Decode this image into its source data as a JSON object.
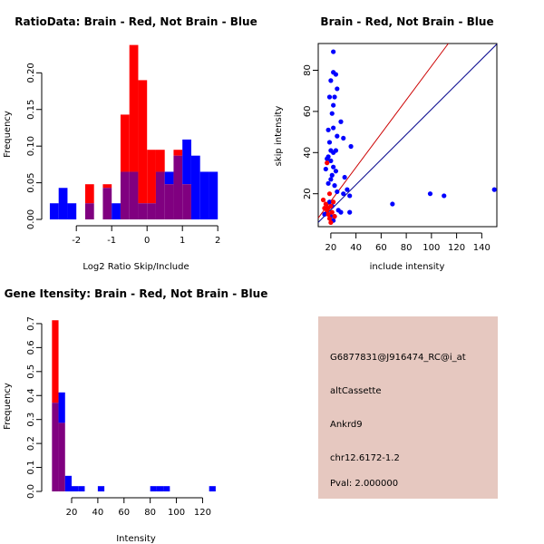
{
  "colors": {
    "red": "#ff0000",
    "blue": "#0000ff",
    "overlap": "#800080",
    "info_bg": "#e6c8c0",
    "pval": "#cc0000",
    "diag_red": "#cc0000",
    "diag_blue": "#00008b"
  },
  "chart_data": [
    {
      "type": "bar",
      "title": "RatioData: Brain - Red, Not Brain - Blue",
      "xlabel": "Log2 Ratio Skip/Include",
      "ylabel": "Frequency",
      "xlim": [
        -2.8,
        2.2
      ],
      "ylim": [
        0,
        0.24
      ],
      "xticks": [
        -2,
        -1,
        0,
        1,
        2
      ],
      "xtick_labels": [
        "-2",
        "-1",
        "0",
        "1",
        "2"
      ],
      "yticks": [
        0.0,
        0.05,
        0.1,
        0.15,
        0.2
      ],
      "ytick_labels": [
        "0.00",
        "0.05",
        "0.10",
        "0.15",
        "0.20"
      ],
      "bin_edges": [
        -2.75,
        -2.5,
        -2.25,
        -2.0,
        -1.75,
        -1.5,
        -1.25,
        -1.0,
        -0.75,
        -0.5,
        -0.25,
        0.0,
        0.25,
        0.5,
        0.75,
        1.0,
        1.25,
        1.5,
        1.75,
        2.0
      ],
      "series": [
        {
          "name": "Brain",
          "color": "red",
          "values": [
            0,
            0,
            0,
            0,
            0.048,
            0,
            0.048,
            0,
            0.143,
            0.238,
            0.19,
            0.095,
            0.095,
            0.048,
            0.095,
            0.048,
            0,
            0,
            0
          ]
        },
        {
          "name": "Not Brain",
          "color": "blue",
          "values": [
            0.022,
            0.043,
            0.022,
            0,
            0.022,
            0,
            0.043,
            0.022,
            0.065,
            0.065,
            0.022,
            0.022,
            0.065,
            0.065,
            0.087,
            0.109,
            0.087,
            0.065,
            0.065
          ]
        }
      ]
    },
    {
      "type": "scatter",
      "title": "Brain - Red, Not Brain - Blue",
      "xlabel": "include intensity",
      "ylabel": "skip intensity",
      "xlim": [
        10,
        152
      ],
      "ylim": [
        4,
        93
      ],
      "xticks": [
        20,
        40,
        60,
        80,
        100,
        120,
        140
      ],
      "xtick_labels": [
        "20",
        "40",
        "60",
        "80",
        "100",
        "120",
        "140"
      ],
      "yticks": [
        20,
        40,
        60,
        80
      ],
      "ytick_labels": [
        "20",
        "40",
        "60",
        "80"
      ],
      "lines": [
        {
          "name": "red-fit",
          "color": "diag_red",
          "slope": 0.82,
          "intercept": 0
        },
        {
          "name": "blue-fit",
          "color": "diag_blue",
          "slope": 0.61,
          "intercept": 0
        }
      ],
      "series": [
        {
          "name": "Brain",
          "color": "red",
          "points": [
            [
              14,
              17
            ],
            [
              16,
              15
            ],
            [
              17,
              12
            ],
            [
              18,
              10
            ],
            [
              19,
              8
            ],
            [
              20,
              6
            ],
            [
              18,
              13
            ],
            [
              21,
              11
            ],
            [
              23,
              9
            ],
            [
              17,
              35
            ],
            [
              19,
              20
            ],
            [
              22,
              16
            ],
            [
              15,
              13
            ],
            [
              20,
              14
            ]
          ]
        },
        {
          "name": "Not Brain",
          "color": "blue",
          "points": [
            [
              22,
              89
            ],
            [
              22,
              79
            ],
            [
              24,
              78
            ],
            [
              20,
              75
            ],
            [
              25,
              71
            ],
            [
              19,
              67
            ],
            [
              23,
              67
            ],
            [
              22,
              63
            ],
            [
              21,
              59
            ],
            [
              28,
              55
            ],
            [
              22,
              52
            ],
            [
              18,
              51
            ],
            [
              25,
              48
            ],
            [
              30,
              47
            ],
            [
              19,
              45
            ],
            [
              36,
              43
            ],
            [
              20,
              41
            ],
            [
              22,
              40
            ],
            [
              24,
              41
            ],
            [
              18,
              38
            ],
            [
              17,
              37
            ],
            [
              20,
              36
            ],
            [
              22,
              33
            ],
            [
              16,
              32
            ],
            [
              24,
              31
            ],
            [
              21,
              29
            ],
            [
              20,
              27
            ],
            [
              18,
              25
            ],
            [
              31,
              28
            ],
            [
              23,
              24
            ],
            [
              33,
              22
            ],
            [
              25,
              21
            ],
            [
              35,
              19
            ],
            [
              30,
              20
            ],
            [
              19,
              16
            ],
            [
              21,
              14
            ],
            [
              26,
              12
            ],
            [
              28,
              11
            ],
            [
              35,
              11
            ],
            [
              17,
              11
            ],
            [
              23,
              9
            ],
            [
              69,
              15
            ],
            [
              99,
              20
            ],
            [
              110,
              19
            ],
            [
              150,
              22
            ],
            [
              20,
              9
            ],
            [
              22,
              7
            ],
            [
              15,
              10
            ]
          ]
        }
      ]
    },
    {
      "type": "bar",
      "title": "Gene Itensity: Brain - Red, Not Brain - Blue",
      "xlabel": "Intensity",
      "ylabel": "Frequency",
      "xlim": [
        2,
        137
      ],
      "ylim": [
        0,
        0.73
      ],
      "xticks": [
        20,
        40,
        60,
        80,
        100,
        120
      ],
      "xtick_labels": [
        "20",
        "40",
        "60",
        "80",
        "100",
        "120"
      ],
      "yticks": [
        0.0,
        0.1,
        0.2,
        0.3,
        0.4,
        0.5,
        0.6,
        0.7
      ],
      "ytick_labels": [
        "0.0",
        "0.1",
        "0.2",
        "0.3",
        "0.4",
        "0.5",
        "0.6",
        "0.7"
      ],
      "bin_edges": [
        5,
        10,
        15,
        20,
        25,
        30,
        35,
        40,
        45,
        50,
        55,
        60,
        65,
        70,
        75,
        80,
        85,
        90,
        95,
        100,
        105,
        110,
        115,
        120,
        125,
        130
      ],
      "series": [
        {
          "name": "Brain",
          "color": "red",
          "values": [
            0.714,
            0.286,
            0,
            0,
            0,
            0,
            0,
            0,
            0,
            0,
            0,
            0,
            0,
            0,
            0,
            0,
            0,
            0,
            0,
            0,
            0,
            0,
            0,
            0,
            0
          ]
        },
        {
          "name": "Not Brain",
          "color": "blue",
          "values": [
            0.37,
            0.413,
            0.065,
            0.022,
            0.022,
            0,
            0,
            0.022,
            0,
            0,
            0,
            0,
            0,
            0,
            0,
            0.022,
            0.022,
            0.022,
            0,
            0,
            0,
            0,
            0,
            0,
            0.022
          ]
        }
      ]
    }
  ],
  "info_panel": {
    "probe_id": "G6877831@J916474_RC@i_at",
    "event_type": "altCassette",
    "gene": "Ankrd9",
    "location": "chr12.6172-1.2",
    "pval": "Pval: 2.000000"
  }
}
